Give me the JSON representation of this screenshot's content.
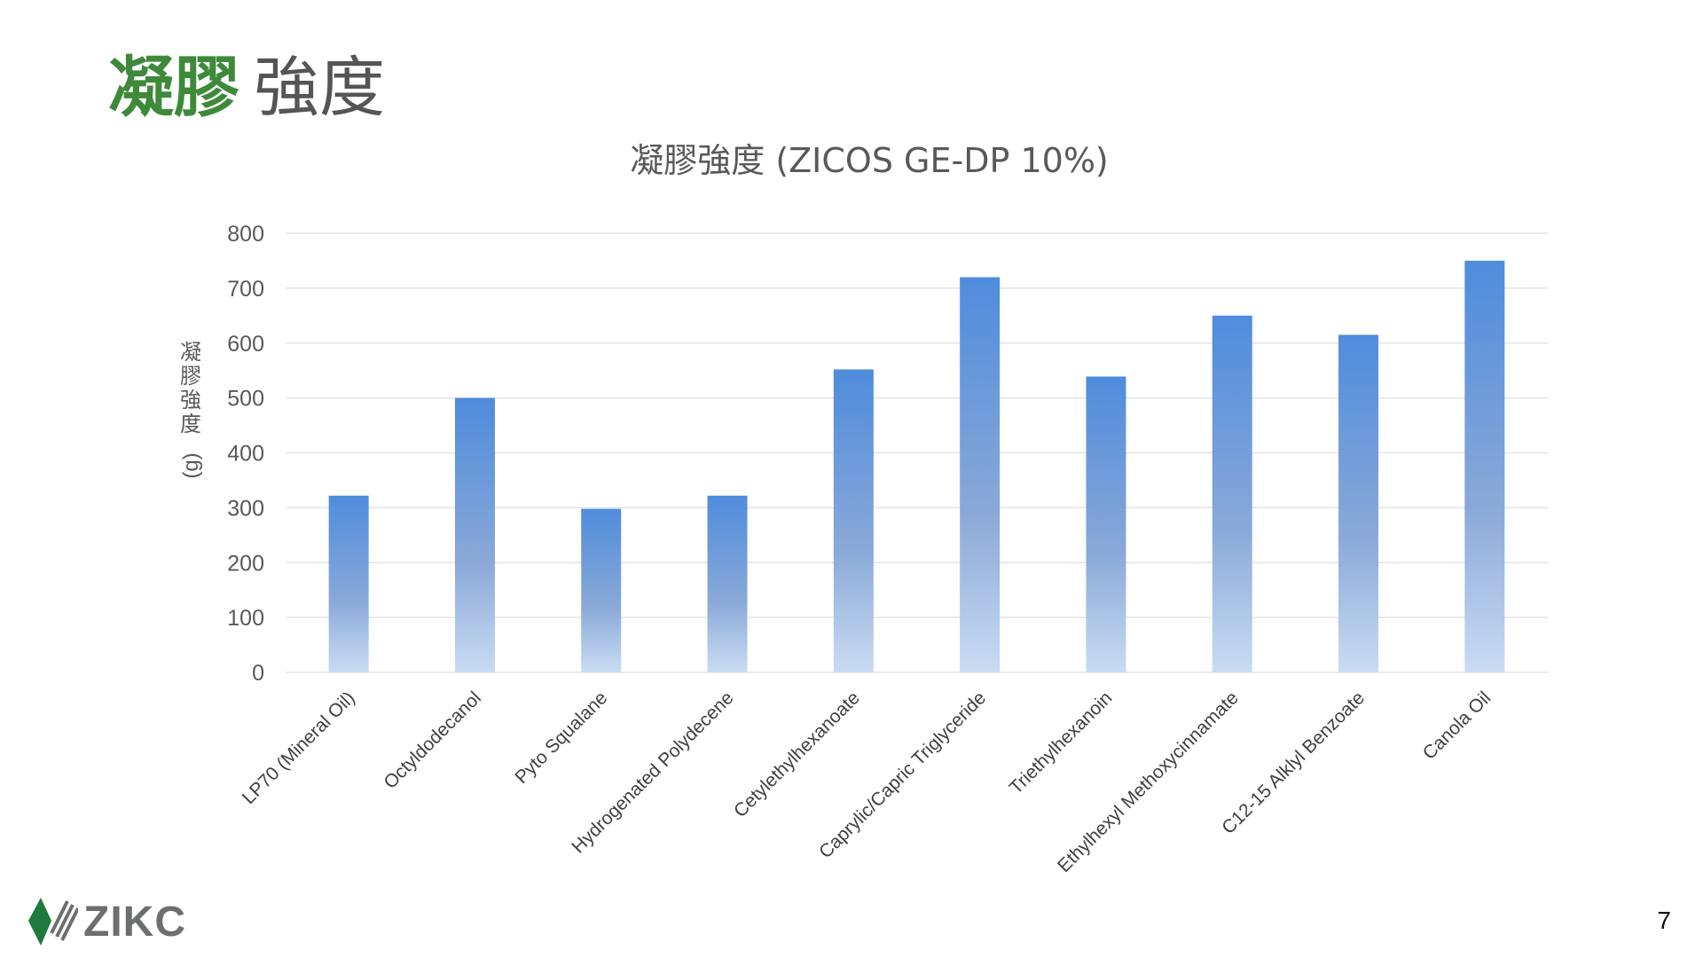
{
  "slide": {
    "title_accent": "凝膠",
    "title_rest": "強度",
    "page_number": "7",
    "logo_text": "ZIKC"
  },
  "colors": {
    "title_green": "#3e8a3a",
    "bar_top": "#4f8cdc",
    "bar_bottom": "#c9dcf3",
    "logo_green": "#1e7a3c",
    "logo_gray": "#6d6e71"
  },
  "chart_data": {
    "type": "bar",
    "title": "凝膠強度 (ZICOS GE-DP 10%)",
    "ylabel": "凝膠強度 (g)",
    "xlabel": "",
    "ylim": [
      0,
      800
    ],
    "yticks": [
      "0",
      "100",
      "200",
      "300",
      "400",
      "500",
      "600",
      "700",
      "800"
    ],
    "grid": true,
    "categories": [
      "LP70 (Mineral Oil)",
      "Octyldodecanol",
      "Pyto Squalane",
      "Hydrogenated Polydecene",
      "Cetylethylhexanoate",
      "Caprylic/Capric Triglyceride",
      "Triethylhexanoin",
      "Ethylhexyl Methoxycinnamate",
      "C12-15 Alklyl Benzoate",
      "Canola Oil"
    ],
    "values": [
      322,
      500,
      298,
      322,
      552,
      720,
      539,
      650,
      615,
      750
    ]
  }
}
